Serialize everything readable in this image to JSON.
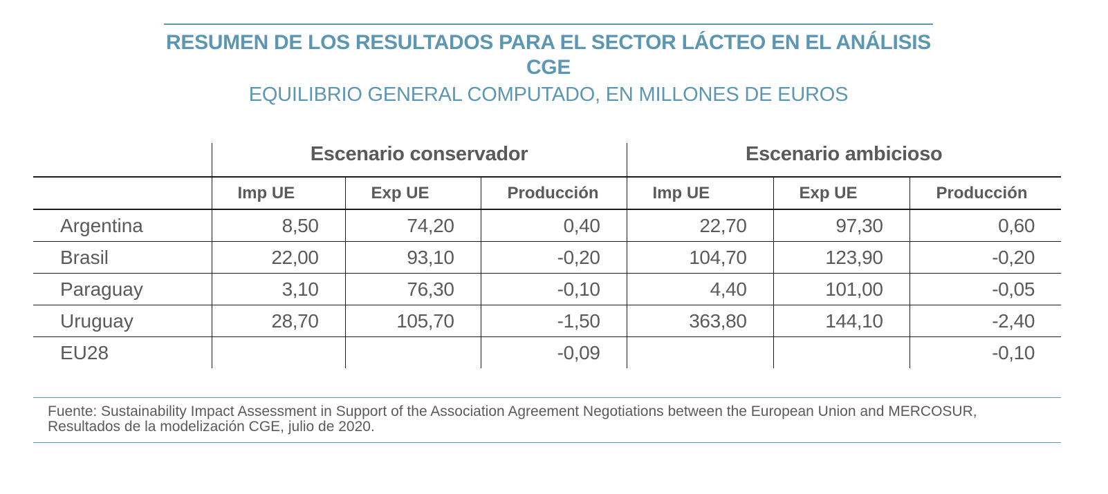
{
  "title": {
    "main": "RESUMEN DE LOS RESULTADOS PARA EL SECTOR LÁCTEO EN EL ANÁLISIS CGE",
    "subtitle": "EQUILIBRIO GENERAL COMPUTADO, EN MILLONES DE EUROS"
  },
  "table": {
    "groups": [
      "Escenario conservador",
      "Escenario ambicioso"
    ],
    "columns": [
      "Imp UE",
      "Exp UE",
      "Producción",
      "Imp UE",
      "Exp UE",
      "Producción"
    ],
    "rows": [
      {
        "label": "Argentina",
        "values": [
          "8,50",
          "74,20",
          "0,40",
          "22,70",
          "97,30",
          "0,60"
        ]
      },
      {
        "label": "Brasil",
        "values": [
          "22,00",
          "93,10",
          "-0,20",
          "104,70",
          "123,90",
          "-0,20"
        ]
      },
      {
        "label": "Paraguay",
        "values": [
          "3,10",
          "76,30",
          "-0,10",
          "4,40",
          "101,00",
          "-0,05"
        ]
      },
      {
        "label": "Uruguay",
        "values": [
          "28,70",
          "105,70",
          "-1,50",
          "363,80",
          "144,10",
          "-2,40"
        ]
      },
      {
        "label": "EU28",
        "values": [
          "",
          "",
          "-0,09",
          "",
          "",
          "-0,10"
        ]
      }
    ]
  },
  "source": "Fuente: Sustainability Impact Assessment in Support of the Association Agreement Negotiations between the European Union and MERCOSUR, Resultados de la modelización CGE, julio de 2020."
}
